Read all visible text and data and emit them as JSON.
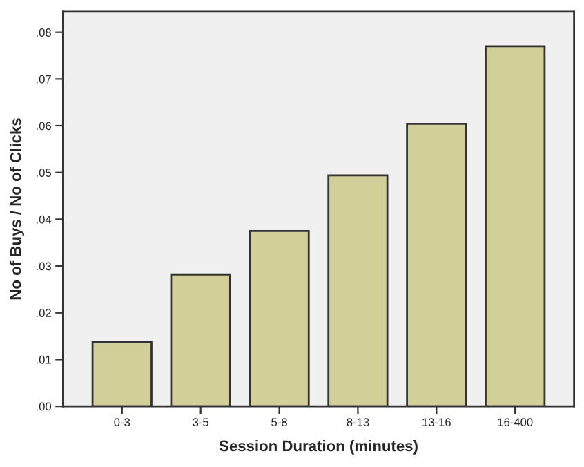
{
  "chart_data": {
    "type": "bar",
    "xlabel": "Session Duration (minutes)",
    "ylabel": "No of Buys / No of Clicks",
    "categories": [
      "0-3",
      "3-5",
      "5-8",
      "8-13",
      "13-16",
      "16-400"
    ],
    "values": [
      0.0137,
      0.0282,
      0.0375,
      0.0494,
      0.0604,
      0.077
    ],
    "color": "#d3cf98",
    "ylim": [
      0,
      0.0844
    ],
    "yticks": [
      {
        "value": 0,
        "label": ".00"
      },
      {
        "value": 0.01,
        "label": ".01"
      },
      {
        "value": 0.02,
        "label": ".02"
      },
      {
        "value": 0.03,
        "label": ".03"
      },
      {
        "value": 0.04,
        "label": ".04"
      },
      {
        "value": 0.05,
        "label": ".05"
      },
      {
        "value": 0.06,
        "label": ".06"
      },
      {
        "value": 0.07,
        "label": ".07"
      },
      {
        "value": 0.08,
        "label": ".08"
      }
    ],
    "grid": false
  }
}
